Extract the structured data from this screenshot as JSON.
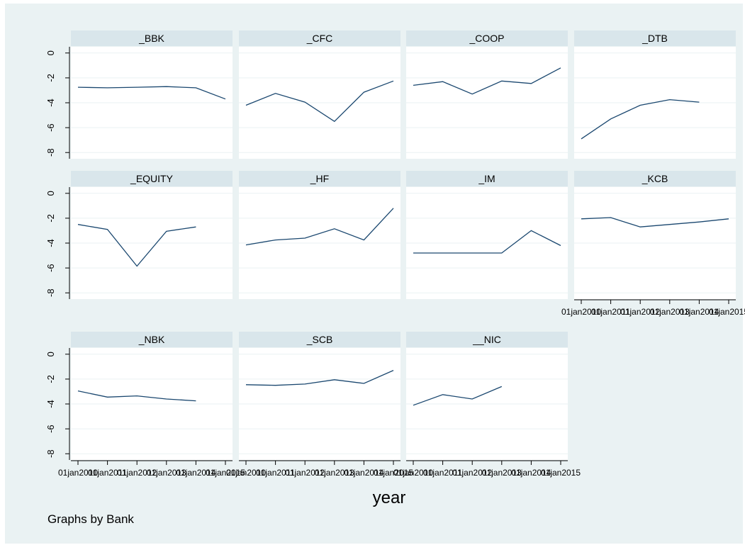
{
  "chart_data": {
    "type": "line",
    "by_note": "Graphs by Bank",
    "xlabel": "year",
    "x_tick_labels": [
      "01jan2010",
      "01jan2011",
      "01jan2012",
      "01jan2013",
      "01jan2014",
      "01jan2015"
    ],
    "y_ticks": [
      0,
      -2,
      -4,
      -6,
      -8
    ],
    "ylim": [
      -8.5,
      0.5
    ],
    "grid": true,
    "colors": {
      "outer_background": "#eaf2f3",
      "plot_background": "#ffffff",
      "panel_title_background": "#d9e6eb",
      "line": "#1a476f",
      "grid": "#eaf2f3"
    },
    "panels": [
      {
        "title": "_BBK",
        "values": [
          -2.75,
          -2.8,
          -2.75,
          -2.7,
          -2.8,
          -3.7
        ]
      },
      {
        "title": "_CFC",
        "values": [
          -4.2,
          -3.25,
          -3.95,
          -5.5,
          -3.15,
          -2.25
        ]
      },
      {
        "title": "_COOP",
        "values": [
          -2.6,
          -2.3,
          -3.3,
          -2.25,
          -2.45,
          -1.2
        ]
      },
      {
        "title": "_DTB",
        "values": [
          -6.9,
          -5.3,
          -4.2,
          -3.75,
          -3.95,
          null
        ]
      },
      {
        "title": "_EQUITY",
        "values": [
          -2.5,
          -2.9,
          -5.85,
          -3.05,
          -2.7,
          null
        ]
      },
      {
        "title": "_HF",
        "values": [
          -4.15,
          -3.75,
          -3.6,
          -2.85,
          -3.75,
          -1.2
        ]
      },
      {
        "title": "_IM",
        "values": [
          -4.8,
          -4.8,
          -4.8,
          -4.8,
          -3.0,
          -4.2
        ]
      },
      {
        "title": "_KCB",
        "values": [
          -2.05,
          -1.95,
          -2.7,
          -2.5,
          -2.3,
          -2.05
        ]
      },
      {
        "title": "_NBK",
        "values": [
          -2.95,
          -3.45,
          -3.35,
          -3.6,
          -3.75,
          null
        ]
      },
      {
        "title": "_SCB",
        "values": [
          -2.45,
          -2.5,
          -2.4,
          -2.05,
          -2.35,
          -1.3
        ]
      },
      {
        "title": "__NIC",
        "values": [
          -4.1,
          -3.25,
          -3.6,
          -2.6,
          null,
          null
        ]
      }
    ]
  }
}
